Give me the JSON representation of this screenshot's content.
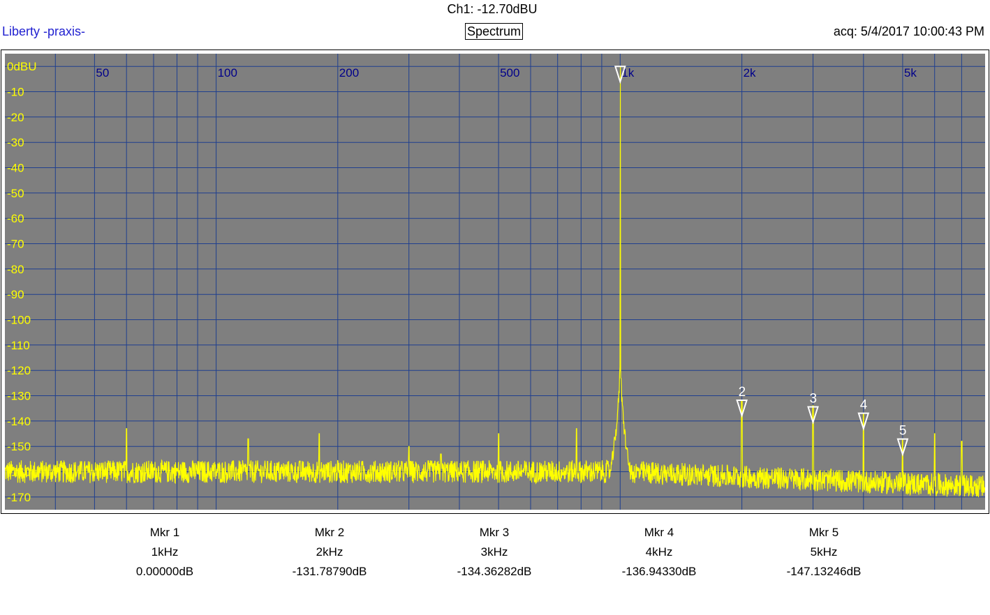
{
  "header": {
    "channel_readout": "Ch1: -12.70dBU",
    "brand": "Liberty -praxis-",
    "view_title": "Spectrum",
    "acquisition": "acq: 5/4/2017 10:00:43 PM"
  },
  "colors": {
    "plot_background": "#7f7f7f",
    "grid": "#1f3f8f",
    "trace": "#ffff00",
    "freq_labels": "#00008b",
    "db_labels": "#ffff00",
    "markers": "#ffffff"
  },
  "chart_data": {
    "type": "line",
    "title": "Spectrum",
    "x_scale": "log",
    "xlim": [
      30,
      8000
    ],
    "ylim": [
      -175,
      5
    ],
    "x_tick_labels": [
      {
        "x": 50,
        "label": "50"
      },
      {
        "x": 100,
        "label": "100"
      },
      {
        "x": 200,
        "label": "200"
      },
      {
        "x": 500,
        "label": "500"
      },
      {
        "x": 1000,
        "label": "1k"
      },
      {
        "x": 2000,
        "label": "2k"
      },
      {
        "x": 5000,
        "label": "5k"
      }
    ],
    "x_gridlines": [
      40,
      50,
      60,
      70,
      80,
      90,
      100,
      200,
      300,
      400,
      500,
      600,
      700,
      800,
      900,
      1000,
      2000,
      3000,
      4000,
      5000,
      6000,
      7000
    ],
    "y_ticks": [
      0,
      -10,
      -20,
      -30,
      -40,
      -50,
      -60,
      -70,
      -80,
      -90,
      -100,
      -110,
      -120,
      -130,
      -140,
      -150,
      -160,
      -170
    ],
    "y_tick_labels": [
      "0dBU",
      "-10",
      "-20",
      "-30",
      "-40",
      "-50",
      "-60",
      "-70",
      "-80",
      "-90",
      "-100",
      "-110",
      "-120",
      "-130",
      "-140",
      "-150",
      "-160",
      "-170"
    ],
    "grid": true,
    "noise_floor_db": -160,
    "fundamental": {
      "x": 1000,
      "y": 0
    },
    "spurs": [
      {
        "x": 60,
        "y": -143
      },
      {
        "x": 120,
        "y": -147
      },
      {
        "x": 180,
        "y": -145
      },
      {
        "x": 300,
        "y": -150
      },
      {
        "x": 360,
        "y": -153
      },
      {
        "x": 500,
        "y": -145
      },
      {
        "x": 780,
        "y": -143
      },
      {
        "x": 2000,
        "y": -132
      },
      {
        "x": 3000,
        "y": -134
      },
      {
        "x": 4000,
        "y": -137
      },
      {
        "x": 5000,
        "y": -147
      },
      {
        "x": 6000,
        "y": -145
      },
      {
        "x": 7000,
        "y": -148
      }
    ],
    "markers": [
      {
        "id": "1",
        "x": 1000,
        "y": 0,
        "show_label": false
      },
      {
        "id": "2",
        "x": 2000,
        "y": -131.8,
        "show_label": true
      },
      {
        "id": "3",
        "x": 3000,
        "y": -134.4,
        "show_label": true
      },
      {
        "id": "4",
        "x": 4000,
        "y": -136.9,
        "show_label": true
      },
      {
        "id": "5",
        "x": 5000,
        "y": -147.1,
        "show_label": true
      }
    ]
  },
  "marker_table": [
    {
      "title": "Mkr 1",
      "freq": "1kHz",
      "value": "0.00000dB"
    },
    {
      "title": "Mkr 2",
      "freq": "2kHz",
      "value": "-131.78790dB"
    },
    {
      "title": "Mkr 3",
      "freq": "3kHz",
      "value": "-134.36282dB"
    },
    {
      "title": "Mkr 4",
      "freq": "4kHz",
      "value": "-136.94330dB"
    },
    {
      "title": "Mkr 5",
      "freq": "5kHz",
      "value": "-147.13246dB"
    }
  ]
}
